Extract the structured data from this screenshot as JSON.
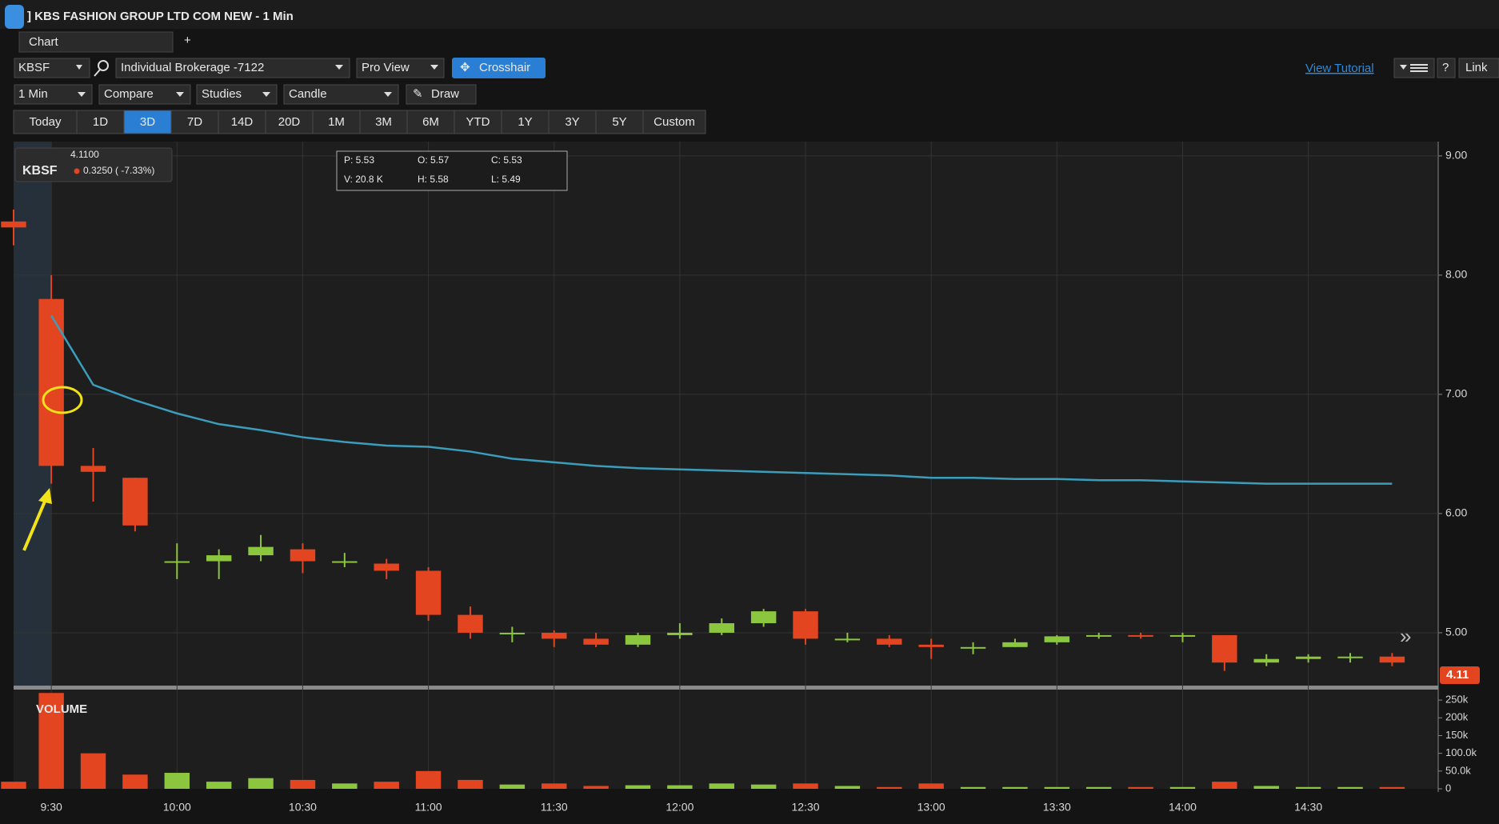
{
  "ui": {
    "window_title": "] KBS FASHION GROUP LTD COM NEW - 1 Min",
    "tab": "Chart",
    "symbol": "KBSF",
    "account": "Individual Brokerage -7122",
    "view": "Pro View",
    "crosshair": "Crosshair",
    "tutorial": "View Tutorial",
    "help": "?",
    "link": "Link",
    "interval": "1 Min",
    "compare": "Compare",
    "studies": "Studies",
    "chart_style": "Candle",
    "draw": "Draw",
    "ranges": [
      "Today",
      "1D",
      "3D",
      "7D",
      "14D",
      "20D",
      "1M",
      "3M",
      "6M",
      "YTD",
      "1Y",
      "3Y",
      "5Y",
      "Custom"
    ],
    "active_range": "3D",
    "legend": {
      "price": "4.1100",
      "symbol": "KBSF",
      "change": "0.3250 ( -7.33%)"
    },
    "ohlc": {
      "p": "P: 5.53",
      "o": "O: 5.57",
      "c": "C: 5.53",
      "v": "V: 20.8 K",
      "h": "H: 5.58",
      "l": "L: 5.49"
    }
  },
  "chart_data": {
    "type": "candlestick",
    "x": [
      "9:21",
      "9:30",
      "9:40",
      "9:50",
      "10:00",
      "10:10",
      "10:20",
      "10:30",
      "10:40",
      "10:50",
      "11:00",
      "11:10",
      "11:20",
      "11:30",
      "11:40",
      "11:50",
      "12:00",
      "12:10",
      "12:20",
      "12:30",
      "12:40",
      "12:50",
      "13:00",
      "13:10",
      "13:20",
      "13:30",
      "13:40",
      "13:50",
      "14:00",
      "14:10",
      "14:20",
      "14:30",
      "14:40",
      "14:50"
    ],
    "open": [
      8.45,
      7.8,
      6.4,
      6.3,
      5.6,
      5.6,
      5.65,
      5.7,
      5.6,
      5.58,
      5.52,
      5.15,
      5.0,
      5.0,
      4.95,
      4.9,
      4.98,
      5.0,
      5.08,
      5.18,
      4.95,
      4.95,
      4.9,
      4.88,
      4.88,
      4.92,
      4.97,
      4.98,
      4.97,
      4.98,
      4.75,
      4.78,
      4.8,
      4.8
    ],
    "high": [
      8.55,
      8.0,
      6.55,
      6.3,
      5.75,
      5.7,
      5.82,
      5.75,
      5.67,
      5.62,
      5.55,
      5.22,
      5.05,
      5.02,
      5.0,
      5.0,
      5.08,
      5.12,
      5.2,
      5.2,
      5.0,
      4.98,
      4.95,
      4.92,
      4.95,
      4.98,
      5.0,
      5.0,
      5.0,
      4.98,
      4.82,
      4.82,
      4.83,
      4.83
    ],
    "low": [
      8.25,
      6.25,
      6.1,
      5.85,
      5.45,
      5.45,
      5.6,
      5.5,
      5.55,
      5.45,
      5.1,
      4.95,
      4.92,
      4.88,
      4.88,
      4.88,
      4.95,
      4.98,
      5.05,
      4.9,
      4.92,
      4.88,
      4.78,
      4.82,
      4.88,
      4.9,
      4.95,
      4.95,
      4.92,
      4.68,
      4.72,
      4.75,
      4.75,
      4.72
    ],
    "close": [
      8.4,
      6.4,
      6.35,
      5.9,
      5.6,
      5.65,
      5.72,
      5.6,
      5.6,
      5.52,
      5.15,
      5.0,
      5.0,
      4.95,
      4.9,
      4.98,
      5.0,
      5.08,
      5.18,
      4.95,
      4.95,
      4.9,
      4.88,
      4.88,
      4.92,
      4.97,
      4.98,
      4.97,
      4.98,
      4.75,
      4.78,
      4.8,
      4.8,
      4.75
    ],
    "up_color": "#8cc63f",
    "down_color": "#e2451f",
    "vwap": {
      "color": "#3b9dbb",
      "values": [
        null,
        7.66,
        7.08,
        6.95,
        6.84,
        6.75,
        6.7,
        6.64,
        6.6,
        6.57,
        6.56,
        6.52,
        6.46,
        6.43,
        6.4,
        6.38,
        6.37,
        6.36,
        6.35,
        6.34,
        6.33,
        6.32,
        6.3,
        6.3,
        6.29,
        6.29,
        6.28,
        6.28,
        6.27,
        6.26,
        6.25,
        6.25,
        6.25,
        6.25
      ]
    },
    "xlim": [
      "9:21",
      "15:01"
    ],
    "xticks": [
      "9:30",
      "10:00",
      "10:30",
      "11:00",
      "11:30",
      "12:00",
      "12:30",
      "13:00",
      "13:30",
      "14:00",
      "14:30"
    ],
    "ylim": [
      4.55,
      9.12
    ],
    "yticks": [
      {
        "value": 5,
        "label": "5.00"
      },
      {
        "value": 6,
        "label": "6.00"
      },
      {
        "value": 7,
        "label": "7.00"
      },
      {
        "value": 8,
        "label": "8.00"
      },
      {
        "value": 9,
        "label": "9.00"
      }
    ],
    "last_price": 4.11,
    "grid": true,
    "volume": {
      "title": "VOLUME",
      "color_by_candle": true,
      "values": [
        20000,
        270000,
        100000,
        40000,
        45000,
        20000,
        30000,
        25000,
        15000,
        20000,
        50000,
        25000,
        12000,
        15000,
        8000,
        10000,
        10000,
        15000,
        12000,
        15000,
        8000,
        5000,
        15000,
        5000,
        5000,
        5000,
        5000,
        5000,
        5000,
        20000,
        8000,
        5000,
        5000,
        5000
      ],
      "ylim": [
        0,
        275000
      ],
      "yticks": [
        0,
        {
          "value": 50000,
          "label": "50.0k"
        },
        {
          "value": 100000,
          "label": "100.0k"
        },
        {
          "value": 150000,
          "label": "150k"
        },
        {
          "value": 200000,
          "label": "200k"
        },
        {
          "value": 250000,
          "label": "250k"
        }
      ]
    }
  }
}
